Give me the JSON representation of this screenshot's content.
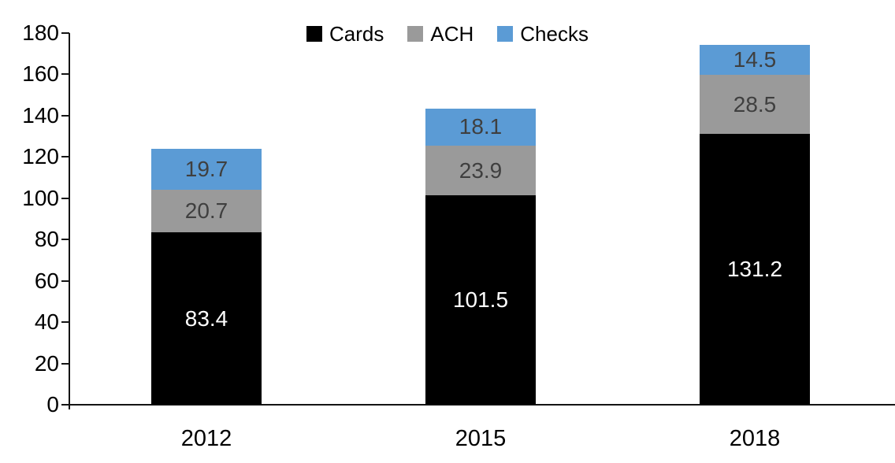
{
  "chart_data": {
    "type": "bar",
    "stacked": true,
    "title": "",
    "xlabel": "",
    "ylabel": "",
    "categories": [
      "2012",
      "2015",
      "2018"
    ],
    "series": [
      {
        "name": "Cards",
        "color": "#000000",
        "label_color": "#ffffff",
        "values": [
          83.4,
          101.5,
          131.2
        ]
      },
      {
        "name": "ACH",
        "color": "#9a9a9a",
        "label_color": "#3f3f3f",
        "values": [
          20.7,
          23.9,
          28.5
        ]
      },
      {
        "name": "Checks",
        "color": "#5b9bd5",
        "label_color": "#3f3f3f",
        "values": [
          19.7,
          18.1,
          14.5
        ]
      }
    ],
    "ylim": [
      0,
      180
    ],
    "yticks": [
      0,
      20,
      40,
      60,
      80,
      100,
      120,
      140,
      160,
      180
    ],
    "grid": false,
    "legend_position": "top-center",
    "data_labels_shown": true
  },
  "colors": {
    "axis": "#141414",
    "tick_label": "#000000",
    "background": "#ffffff"
  }
}
